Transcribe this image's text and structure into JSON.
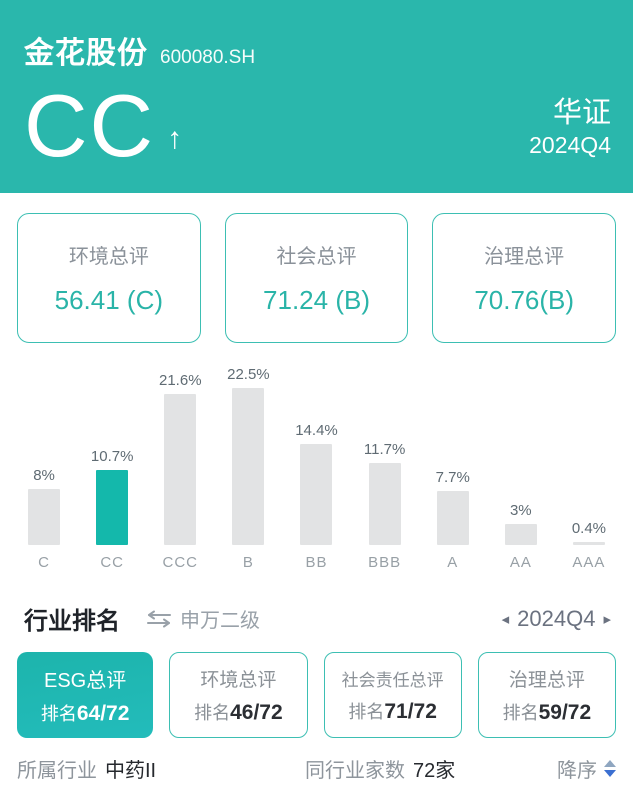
{
  "header": {
    "company": "金花股份",
    "ticker": "600080.SH",
    "rating": "CC",
    "trend_icon": "arrow-up",
    "trend_glyph": "↑",
    "provider": "华证",
    "period": "2024Q4",
    "bg_color": "#2ab7ac"
  },
  "score_cards": [
    {
      "label": "环境总评",
      "value": "56.41 (C)"
    },
    {
      "label": "社会总评",
      "value": "71.24 (B)"
    },
    {
      "label": "治理总评",
      "value": "70.76(B)"
    }
  ],
  "chart_data": {
    "type": "bar",
    "title": "",
    "xlabel": "",
    "ylabel": "",
    "categories": [
      "C",
      "CC",
      "CCC",
      "B",
      "BB",
      "BBB",
      "A",
      "AA",
      "AAA"
    ],
    "values": [
      8,
      10.7,
      21.6,
      22.5,
      14.4,
      11.7,
      7.7,
      3,
      0.4
    ],
    "value_labels": [
      "8%",
      "10.7%",
      "21.6%",
      "22.5%",
      "14.4%",
      "11.7%",
      "7.7%",
      "3%",
      "0.4%"
    ],
    "highlight_index": 1,
    "highlight_color": "#14b8ab",
    "bar_color": "#e2e3e4",
    "ylim": [
      0,
      25
    ],
    "grid": false,
    "legend": "none"
  },
  "industry_section": {
    "title": "行业排名",
    "swap_icon": "swap-arrows",
    "classification": "申万二级",
    "prev_icon": "◂",
    "period": "2024Q4",
    "next_icon": "▸"
  },
  "rank_cards": [
    {
      "label": "ESG总评",
      "rank_prefix": "排名",
      "rank": "64/72",
      "active": true
    },
    {
      "label": "环境总评",
      "rank_prefix": "排名",
      "rank": "46/72",
      "active": false
    },
    {
      "label": "社会责任总评",
      "rank_prefix": "排名",
      "rank": "71/72",
      "active": false
    },
    {
      "label": "治理总评",
      "rank_prefix": "排名",
      "rank": "59/72",
      "active": false
    }
  ],
  "footer": {
    "industry_label": "所属行业",
    "industry_value": "中药II",
    "count_label": "同行业家数",
    "count_value": "72家",
    "sort_label": "降序",
    "sort_icon": "sort-up-down"
  },
  "colors": {
    "accent_teal": "#2ab7ac",
    "card_border_teal": "#3dbfb3",
    "value_teal": "#2ab4a8",
    "bar_gray": "#e2e3e4",
    "text_gray": "#8e959c",
    "sort_up": "#8fa6c0",
    "sort_down": "#3b6fd1"
  }
}
